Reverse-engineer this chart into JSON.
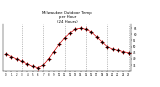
{
  "title": "Milwaukee Outdoor Temp\nper Hour\n(24 Hours)",
  "hours": [
    0,
    1,
    2,
    3,
    4,
    5,
    6,
    7,
    8,
    9,
    10,
    11,
    12,
    13,
    14,
    15,
    16,
    17,
    18,
    19,
    20,
    21,
    22,
    23
  ],
  "temps": [
    44,
    42,
    40,
    38,
    36,
    34,
    33,
    35,
    40,
    46,
    52,
    57,
    61,
    64,
    65,
    64,
    62,
    58,
    54,
    50,
    48,
    47,
    46,
    45
  ],
  "ylim": [
    30,
    68
  ],
  "xlim": [
    -0.5,
    23.5
  ],
  "bg_color": "#ffffff",
  "line_color": "#cc0000",
  "marker_color": "#cc0000",
  "dot_color": "#000000",
  "grid_color": "#888888",
  "tick_label_color": "#000000",
  "title_color": "#000000",
  "grid_hours": [
    3,
    7,
    11,
    15,
    19,
    23
  ],
  "ytick_right": true,
  "yticks": [
    35,
    40,
    45,
    50,
    55,
    60,
    65
  ],
  "ytick_labels": [
    "35",
    "40",
    "45",
    "50",
    "55",
    "60",
    "65"
  ],
  "xtick_hours": [
    0,
    1,
    2,
    3,
    4,
    5,
    6,
    7,
    8,
    9,
    10,
    11,
    12,
    13,
    14,
    15,
    16,
    17,
    18,
    19,
    20,
    21,
    22,
    23
  ]
}
